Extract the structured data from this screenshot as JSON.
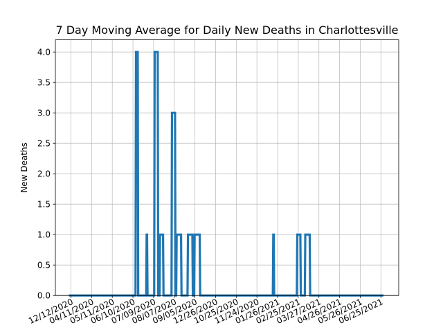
{
  "chart_data": {
    "type": "line",
    "title": "7 Day Moving Average for Daily New Deaths in Charlottesville",
    "xlabel": "",
    "ylabel": "New Deaths",
    "ylim": [
      0,
      4.2
    ],
    "y_ticks": [
      "0.0",
      "0.5",
      "1.0",
      "1.5",
      "2.0",
      "2.5",
      "3.0",
      "3.5",
      "4.0"
    ],
    "x_ticks": [
      "12/12/2020",
      "04/11/2020",
      "05/11/2020",
      "06/10/2020",
      "07/09/2020",
      "08/07/2020",
      "09/05/2020",
      "12/26/2020",
      "10/25/2020",
      "11/24/2020",
      "01/26/2021",
      "02/25/2021",
      "03/27/2021",
      "04/26/2021",
      "05/26/2021",
      "06/25/2021"
    ],
    "x_tick_rotation_deg": 25,
    "grid": true,
    "line_color": "#1f77b4",
    "series": [
      {
        "x": [
          0,
          100,
          100.7,
          103.3,
          104,
          116,
          116.7,
          117.3,
          118,
          128,
          128.7,
          133.3,
          134,
          136,
          136.7,
          141.3,
          142,
          154,
          154.7,
          159.3,
          160,
          161,
          161.7,
          168.3,
          169,
          178,
          178.7,
          185.3,
          186,
          188,
          188.7,
          196.3,
          197,
          306,
          306.7,
          307.3,
          308,
          342,
          342.7,
          347.3,
          348,
          354,
          354.7,
          361.3,
          362,
          472
        ],
        "values": [
          0,
          0,
          4,
          4,
          0,
          0,
          1,
          1,
          0,
          0,
          4,
          4,
          0,
          0,
          1,
          1,
          0,
          0,
          3,
          3,
          0,
          0,
          1,
          1,
          0,
          0,
          1,
          1,
          0,
          0,
          1,
          1,
          0,
          0,
          1,
          1,
          0,
          0,
          1,
          1,
          0,
          0,
          1,
          1,
          0,
          0
        ]
      }
    ]
  }
}
